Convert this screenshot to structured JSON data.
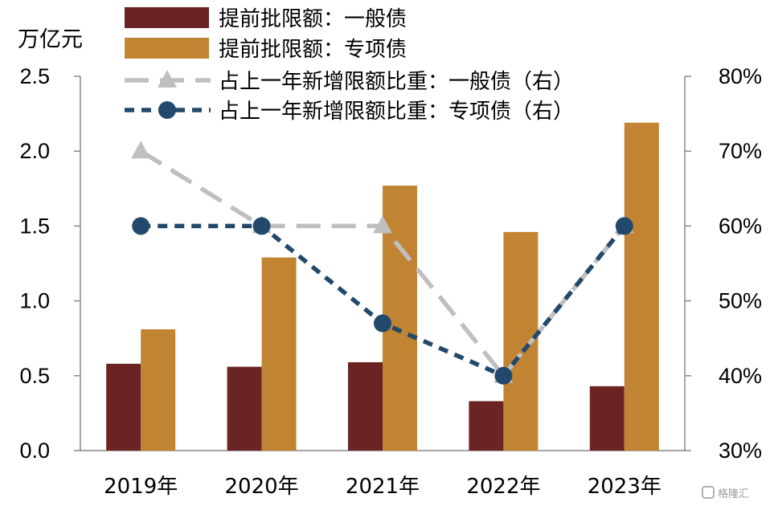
{
  "chart_data": {
    "type": "bar",
    "categories": [
      "2019年",
      "2020年",
      "2021年",
      "2022年",
      "2023年"
    ],
    "y_left_unit": "万亿元",
    "y_left_ticks": [
      "0.0",
      "0.5",
      "1.0",
      "1.5",
      "2.0",
      "2.5"
    ],
    "y_right_ticks": [
      "30%",
      "40%",
      "50%",
      "60%",
      "70%",
      "80%"
    ],
    "ylim_left": [
      0,
      2.5
    ],
    "ylim_right": [
      30,
      80
    ],
    "grid": false,
    "legend_placement": "top",
    "series": [
      {
        "name": "提前批限额：一般债",
        "kind": "bar",
        "axis": "left",
        "color": "#6b2424",
        "values": [
          0.58,
          0.56,
          0.59,
          0.33,
          0.43
        ]
      },
      {
        "name": "提前批限额：专项债",
        "kind": "bar",
        "axis": "left",
        "color": "#c08433",
        "values": [
          0.81,
          1.29,
          1.77,
          1.46,
          2.19
        ]
      },
      {
        "name": "占上一年新增限额比重：一般债（右）",
        "kind": "line",
        "axis": "right",
        "color": "#bfbfbf",
        "marker": "triangle",
        "style": "dashed",
        "values": [
          70,
          60,
          60,
          40,
          60
        ]
      },
      {
        "name": "占上一年新增限额比重：专项债（右）",
        "kind": "line",
        "axis": "right",
        "color": "#22496b",
        "marker": "circle",
        "style": "dashed",
        "values": [
          60,
          60,
          47,
          40,
          60
        ]
      }
    ]
  },
  "watermark": "格隆汇"
}
